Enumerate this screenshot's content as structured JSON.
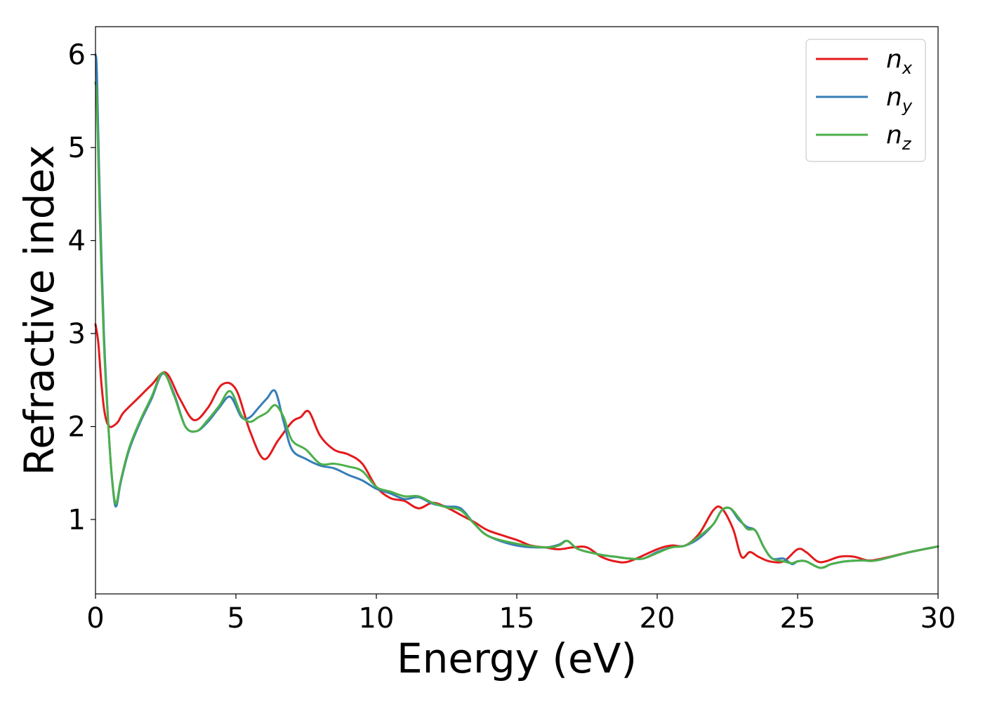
{
  "chart_data": {
    "type": "line",
    "title": "",
    "xlabel": "Energy (eV)",
    "ylabel": "Refractive index",
    "xlim": [
      0,
      30
    ],
    "ylim": [
      0.2,
      6.3
    ],
    "xticks": [
      0,
      5,
      10,
      15,
      20,
      25,
      30
    ],
    "yticks": [
      1,
      2,
      3,
      4,
      5,
      6
    ],
    "grid": false,
    "legend_position": "top-right",
    "series": [
      {
        "name": "n",
        "subscript": "x",
        "color": "#e41a1c",
        "x": [
          0,
          0.1,
          0.2,
          0.3,
          0.4,
          0.5,
          0.6,
          0.8,
          1.0,
          1.5,
          2.0,
          2.5,
          3.0,
          3.5,
          4.0,
          4.5,
          5.0,
          5.5,
          6.0,
          6.5,
          7.0,
          7.3,
          7.6,
          8.0,
          8.5,
          9.0,
          9.5,
          10.0,
          10.5,
          11.0,
          11.5,
          12.0,
          12.5,
          13.0,
          13.5,
          14.0,
          15.0,
          15.5,
          16.0,
          16.5,
          17.0,
          17.5,
          18.0,
          18.5,
          19.0,
          20.0,
          20.5,
          21.0,
          21.5,
          22.0,
          22.3,
          22.7,
          23.0,
          23.3,
          23.6,
          24.0,
          24.5,
          25.0,
          25.3,
          25.7,
          26.0,
          26.5,
          27.0,
          27.5,
          28.0,
          29.0,
          30.0
        ],
        "y": [
          3.1,
          2.9,
          2.5,
          2.2,
          2.05,
          2.0,
          2.0,
          2.05,
          2.15,
          2.3,
          2.45,
          2.58,
          2.3,
          2.07,
          2.2,
          2.45,
          2.4,
          1.95,
          1.65,
          1.85,
          2.05,
          2.1,
          2.16,
          1.9,
          1.75,
          1.7,
          1.6,
          1.35,
          1.23,
          1.2,
          1.12,
          1.18,
          1.13,
          1.05,
          0.97,
          0.88,
          0.78,
          0.72,
          0.7,
          0.68,
          0.7,
          0.7,
          0.6,
          0.55,
          0.55,
          0.68,
          0.72,
          0.72,
          0.85,
          1.1,
          1.12,
          0.9,
          0.6,
          0.65,
          0.6,
          0.55,
          0.55,
          0.68,
          0.65,
          0.55,
          0.55,
          0.6,
          0.6,
          0.56,
          0.58,
          0.65,
          0.71
        ]
      },
      {
        "name": "n",
        "subscript": "y",
        "color": "#377eb8",
        "x": [
          0,
          0.05,
          0.15,
          0.3,
          0.5,
          0.65,
          0.75,
          0.9,
          1.2,
          1.6,
          2.0,
          2.4,
          2.8,
          3.2,
          3.6,
          4.0,
          4.4,
          4.8,
          5.2,
          5.5,
          5.8,
          6.1,
          6.4,
          6.7,
          7.0,
          7.5,
          8.0,
          8.5,
          9.0,
          9.5,
          10.0,
          10.5,
          11.0,
          11.5,
          12.0,
          12.5,
          13.0,
          13.5,
          14.0,
          15.0,
          16.0,
          16.5,
          16.8,
          17.2,
          18.0,
          18.5,
          19.0,
          19.5,
          20.0,
          20.5,
          21.0,
          21.5,
          22.0,
          22.3,
          22.6,
          22.9,
          23.2,
          23.5,
          23.8,
          24.1,
          24.5,
          24.8,
          25.0,
          25.3,
          25.8,
          26.2,
          26.7,
          27.3,
          27.8,
          29.0,
          30.0
        ],
        "y": [
          6.0,
          5.8,
          4.5,
          3.0,
          1.8,
          1.25,
          1.15,
          1.4,
          1.75,
          2.05,
          2.3,
          2.57,
          2.35,
          2.0,
          1.95,
          2.05,
          2.2,
          2.32,
          2.1,
          2.1,
          2.2,
          2.3,
          2.38,
          2.05,
          1.75,
          1.65,
          1.58,
          1.55,
          1.48,
          1.42,
          1.33,
          1.28,
          1.22,
          1.24,
          1.17,
          1.14,
          1.12,
          0.95,
          0.82,
          0.72,
          0.7,
          0.73,
          0.77,
          0.68,
          0.62,
          0.6,
          0.58,
          0.58,
          0.65,
          0.7,
          0.72,
          0.8,
          0.95,
          1.1,
          1.12,
          1.0,
          0.92,
          0.88,
          0.7,
          0.58,
          0.58,
          0.52,
          0.55,
          0.55,
          0.48,
          0.52,
          0.55,
          0.56,
          0.56,
          0.65,
          0.71
        ]
      },
      {
        "name": "n",
        "subscript": "z",
        "color": "#4daf4a",
        "x": [
          0,
          0.05,
          0.15,
          0.3,
          0.5,
          0.65,
          0.75,
          0.9,
          1.2,
          1.6,
          2.0,
          2.4,
          2.8,
          3.2,
          3.6,
          4.0,
          4.4,
          4.8,
          5.2,
          5.5,
          5.8,
          6.1,
          6.4,
          6.7,
          7.0,
          7.5,
          8.0,
          8.5,
          9.0,
          9.5,
          10.0,
          10.5,
          11.0,
          11.5,
          12.0,
          12.5,
          13.0,
          13.5,
          14.0,
          15.0,
          16.0,
          16.5,
          16.8,
          17.2,
          18.0,
          18.5,
          19.0,
          19.5,
          20.0,
          20.5,
          21.0,
          21.5,
          22.0,
          22.3,
          22.6,
          22.9,
          23.2,
          23.5,
          23.8,
          24.1,
          24.5,
          24.8,
          25.0,
          25.3,
          25.8,
          26.2,
          26.7,
          27.3,
          27.8,
          29.0,
          30.0
        ],
        "y": [
          5.7,
          5.5,
          4.3,
          2.9,
          1.8,
          1.27,
          1.18,
          1.42,
          1.77,
          2.07,
          2.32,
          2.58,
          2.33,
          2.0,
          1.95,
          2.07,
          2.22,
          2.38,
          2.12,
          2.05,
          2.1,
          2.15,
          2.23,
          2.1,
          1.85,
          1.75,
          1.6,
          1.6,
          1.57,
          1.52,
          1.35,
          1.3,
          1.25,
          1.25,
          1.18,
          1.13,
          1.1,
          0.95,
          0.82,
          0.74,
          0.7,
          0.72,
          0.77,
          0.68,
          0.62,
          0.6,
          0.58,
          0.58,
          0.64,
          0.7,
          0.72,
          0.82,
          0.95,
          1.1,
          1.12,
          1.02,
          0.9,
          0.88,
          0.7,
          0.58,
          0.55,
          0.53,
          0.55,
          0.55,
          0.48,
          0.52,
          0.55,
          0.56,
          0.56,
          0.65,
          0.71
        ]
      }
    ]
  }
}
